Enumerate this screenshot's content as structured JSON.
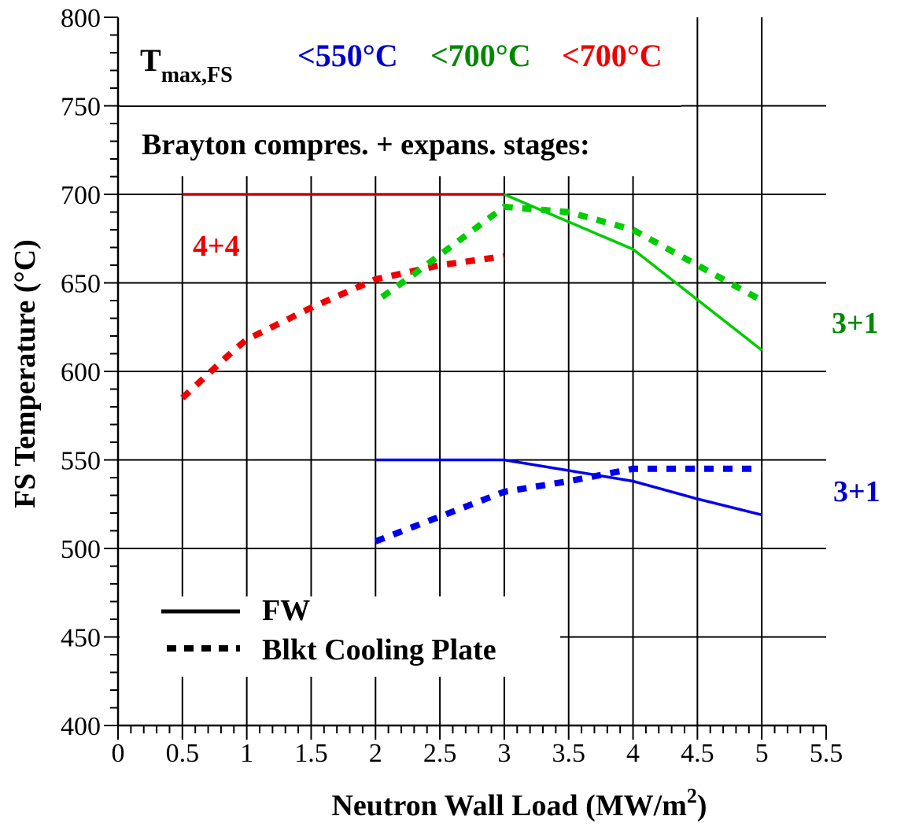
{
  "chart_data": {
    "type": "line",
    "xlabel": "Neutron Wall Load (MW/m",
    "xlabel_sup": "2",
    "xlabel_suffix": ")",
    "ylabel": "FS Temperature (°C)",
    "xlim": [
      0,
      5.5
    ],
    "ylim": [
      400,
      800
    ],
    "x_ticks": [
      "0",
      "0.5",
      "1",
      "1.5",
      "2",
      "2.5",
      "3",
      "3.5",
      "4",
      "4.5",
      "5",
      "5.5"
    ],
    "y_ticks": [
      "400",
      "450",
      "500",
      "550",
      "600",
      "650",
      "700",
      "750",
      "800"
    ],
    "grid": "vertical lines at major ticks 0.5–5, horizontal lines at 450–750",
    "header": {
      "tmax_main": "T",
      "tmax_sub": "max,FS",
      "limits": [
        {
          "text": "<550°C",
          "color": "#0000cc"
        },
        {
          "text": "<700°C",
          "color": "#008800"
        },
        {
          "text": "<700°C",
          "color": "#ee0000"
        }
      ],
      "stages_title": "Brayton compres. + expans. stages:"
    },
    "series": [
      {
        "color": "#cc0000",
        "style": "solid",
        "x": [
          0.5,
          3
        ],
        "y": [
          700,
          700
        ]
      },
      {
        "color": "#ee0000",
        "style": "dotted",
        "x": [
          0.5,
          0.9,
          1.0,
          1.5,
          2.0,
          2.5,
          3.0
        ],
        "y": [
          585,
          612,
          618,
          636,
          652,
          660,
          665
        ]
      },
      {
        "color": "#00cc00",
        "style": "solid",
        "x": [
          3,
          4,
          5
        ],
        "y": [
          700,
          669,
          612
        ]
      },
      {
        "color": "#00cc00",
        "style": "dotted",
        "x": [
          2.05,
          2.3,
          3.0,
          3.5,
          4.0,
          4.5,
          5.0
        ],
        "y": [
          642,
          655,
          693,
          690,
          680,
          660,
          640
        ]
      },
      {
        "color": "#0000ee",
        "style": "solid",
        "x": [
          2,
          3,
          4,
          4.5,
          5
        ],
        "y": [
          550,
          550,
          538,
          528,
          519
        ]
      },
      {
        "color": "#0000ee",
        "style": "dotted",
        "x": [
          2,
          2.5,
          3,
          3.5,
          4,
          5
        ],
        "y": [
          504,
          518,
          532,
          538,
          545,
          545
        ]
      }
    ],
    "annotations": [
      {
        "text": "4+4",
        "color": "#ee0000"
      },
      {
        "text": "3+1",
        "color": "#008800"
      },
      {
        "text": "3+1",
        "color": "#0000cc"
      }
    ],
    "legend": {
      "placement": "bottom-left",
      "entries": [
        {
          "label": "FW",
          "style": "solid"
        },
        {
          "label": "Blkt Cooling Plate",
          "style": "dotted"
        }
      ]
    }
  }
}
